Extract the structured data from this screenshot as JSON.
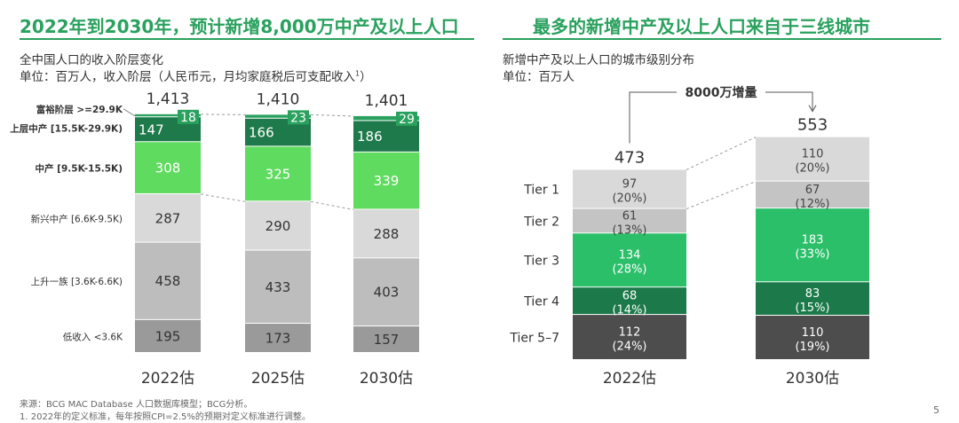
{
  "left": {
    "title": "2022年到2030年，预计新增8,000万中产及以上人口",
    "subtitle1": "全中国人口的收入阶层变化",
    "subtitle2": "单位：百万人，收入阶层（人民币元，月均家庭税后可支配收入",
    "subtitle2_sup": "1",
    "subtitle2_end": "）"
  },
  "right": {
    "title": "最多的新增中产及以上人口来自于三线城市",
    "subtitle1": "新增中产及以上人口的城市级别分布",
    "subtitle2": "单位：百万人",
    "annotation": "8000万增量"
  },
  "footnotes": {
    "source": "来源：BCG MAC Database 人口数据库模型；BCG分析。",
    "note1": "1. 2022年的定义标准，每年按照CPI=2.5%的预期对定义标准进行调整。"
  },
  "page_number": "5",
  "colors": {
    "brand_green": "#2aa15e",
    "affluent": "#2aa15e",
    "upper_middle": "#1e7a4a",
    "middle": "#5fdb5f",
    "emerging": "#d9d9d9",
    "mass": "#bdbdbd",
    "low": "#9a9a9a",
    "tier1": "#d9d9d9",
    "tier2": "#c4c4c4",
    "tier3": "#2cbf6a",
    "tier4": "#1c7a4a",
    "tier57": "#4d4d4d"
  },
  "chart_data": [
    {
      "type": "bar",
      "stacked": true,
      "categories": [
        "2022估",
        "2025估",
        "2030估"
      ],
      "totals": [
        "1,413",
        "1,410",
        "1,401"
      ],
      "series": [
        {
          "name": "低收入 <3.6K",
          "color_key": "low",
          "values": [
            195,
            173,
            157
          ]
        },
        {
          "name": "上升一族 [3.6K-6.6K)",
          "color_key": "mass",
          "values": [
            458,
            433,
            403
          ]
        },
        {
          "name": "新兴中产 [6.6K-9.5K)",
          "color_key": "emerging",
          "values": [
            287,
            290,
            288
          ]
        },
        {
          "name": "中产 [9.5K-15.5K)",
          "color_key": "middle",
          "values": [
            308,
            325,
            339
          ]
        },
        {
          "name": "上层中产 [15.5K-29.9K)",
          "color_key": "upper_middle",
          "values": [
            147,
            166,
            186
          ]
        },
        {
          "name": "富裕阶层 >=29.9K",
          "color_key": "affluent",
          "values": [
            18,
            23,
            29
          ]
        }
      ]
    },
    {
      "type": "bar",
      "stacked": true,
      "categories": [
        "2022估",
        "2030估"
      ],
      "totals": [
        "473",
        "553"
      ],
      "series": [
        {
          "name": "Tier 5–7",
          "color_key": "tier57",
          "values": [
            112,
            110
          ],
          "shares": [
            "(24%)",
            "(19%)"
          ]
        },
        {
          "name": "Tier 4",
          "color_key": "tier4",
          "values": [
            68,
            83
          ],
          "shares": [
            "(14%)",
            "(15%)"
          ]
        },
        {
          "name": "Tier 3",
          "color_key": "tier3",
          "values": [
            134,
            183
          ],
          "shares": [
            "(28%)",
            "(33%)"
          ]
        },
        {
          "name": "Tier 2",
          "color_key": "tier2",
          "values": [
            61,
            67
          ],
          "shares": [
            "(13%)",
            "(12%)"
          ]
        },
        {
          "name": "Tier 1",
          "color_key": "tier1",
          "values": [
            97,
            110
          ],
          "shares": [
            "(20%)",
            "(20%)"
          ]
        }
      ]
    }
  ]
}
